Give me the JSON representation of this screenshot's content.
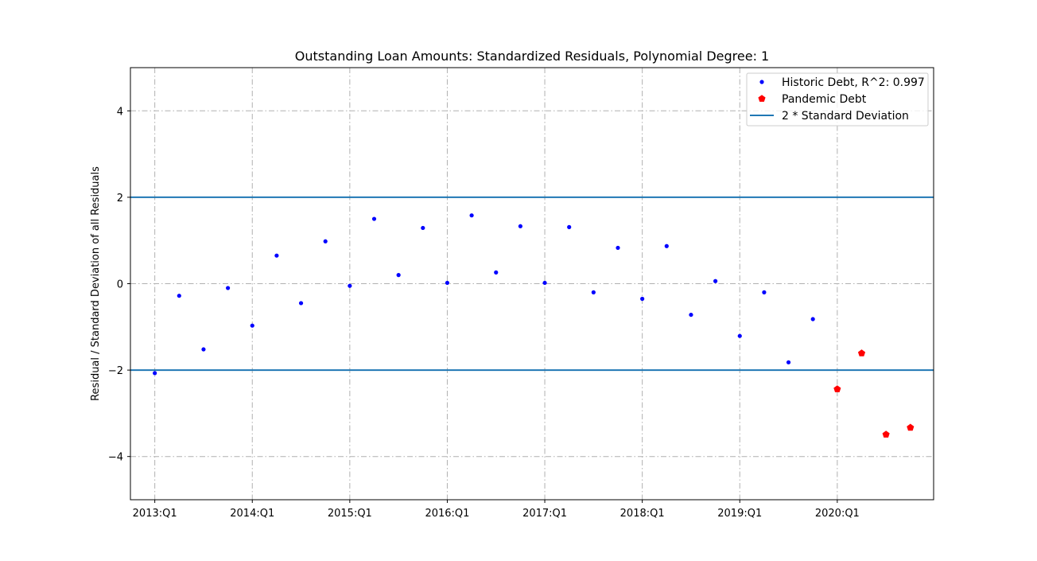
{
  "chart_data": {
    "type": "scatter",
    "title": "Outstanding Loan Amounts: Standardized Residuals, Polynomial Degree: 1",
    "xlabel": "",
    "ylabel": "Residual / Standard Deviation of all Residuals",
    "ylim": [
      -5,
      5
    ],
    "xlim": [
      "2012:Q4",
      "2020:Q4"
    ],
    "grid": true,
    "legend_position": "top-right",
    "x_tick_labels": [
      "2013:Q1",
      "2014:Q1",
      "2015:Q1",
      "2016:Q1",
      "2017:Q1",
      "2018:Q1",
      "2019:Q1",
      "2020:Q1"
    ],
    "y_ticks": [
      -4,
      -2,
      0,
      2,
      4
    ],
    "y_tick_labels": [
      "−4",
      "−2",
      "0",
      "2",
      "4"
    ],
    "series": [
      {
        "name": "Historic Debt, R^2: 0.997",
        "kind": "points",
        "marker": "circle",
        "color": "#0000ff",
        "x": [
          "2013:Q1",
          "2013:Q2",
          "2013:Q3",
          "2013:Q4",
          "2014:Q1",
          "2014:Q2",
          "2014:Q3",
          "2014:Q4",
          "2015:Q1",
          "2015:Q2",
          "2015:Q3",
          "2015:Q4",
          "2016:Q1",
          "2016:Q2",
          "2016:Q3",
          "2016:Q4",
          "2017:Q1",
          "2017:Q2",
          "2017:Q3",
          "2017:Q4",
          "2018:Q1",
          "2018:Q2",
          "2018:Q3",
          "2018:Q4",
          "2019:Q1",
          "2019:Q2",
          "2019:Q3",
          "2019:Q4"
        ],
        "values": [
          -2.07,
          -0.28,
          -1.52,
          -0.1,
          -0.97,
          0.65,
          -0.45,
          0.98,
          -0.05,
          1.5,
          0.2,
          1.29,
          0.02,
          1.58,
          0.26,
          1.33,
          0.02,
          1.31,
          -0.2,
          0.83,
          -0.35,
          0.87,
          -0.72,
          0.06,
          -1.21,
          -0.2,
          -1.82,
          -0.82
        ]
      },
      {
        "name": "Pandemic Debt",
        "kind": "points",
        "marker": "pentagon",
        "color": "#ff0000",
        "x": [
          "2020:Q1",
          "2020:Q2",
          "2020:Q3",
          "2020:Q4"
        ],
        "values": [
          -2.44,
          -1.61,
          -3.49,
          -3.33
        ]
      },
      {
        "name": "2 * Standard Deviation",
        "kind": "hlines",
        "color": "#1f77b4",
        "values": [
          2,
          -2
        ]
      }
    ]
  }
}
